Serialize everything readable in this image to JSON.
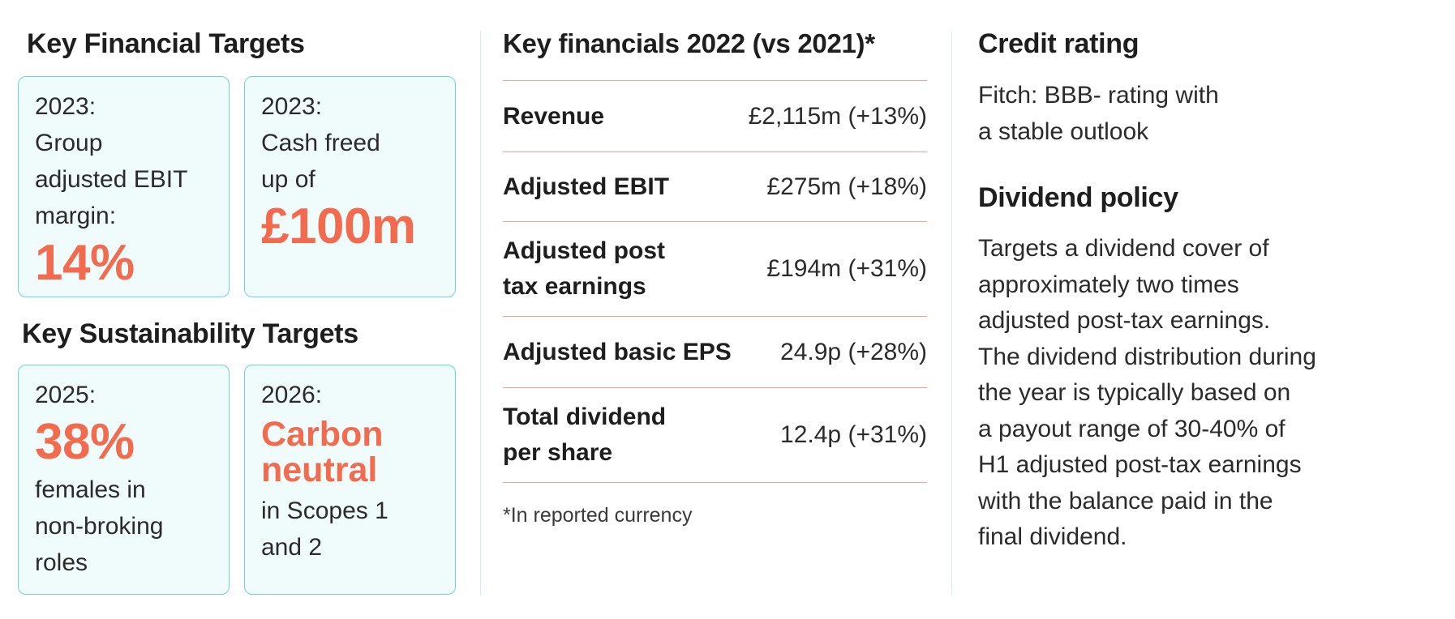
{
  "financial_targets": {
    "title": "Key Financial Targets",
    "ebit_card": {
      "lines": [
        "2023:",
        "Group",
        "adjusted EBIT",
        "margin:"
      ],
      "value": "14%"
    },
    "cash_card": {
      "lines": [
        "2023:",
        "Cash freed",
        "up of"
      ],
      "value": "£100m"
    }
  },
  "sustainability_targets": {
    "title": "Key Sustainability Targets",
    "females_card": {
      "year": "2025:",
      "value": "38%",
      "lines": [
        "females in",
        "non-broking",
        "roles"
      ]
    },
    "carbon_card": {
      "year": "2026:",
      "highlight": [
        "Carbon",
        "neutral"
      ],
      "lines": [
        "in Scopes 1",
        "and 2"
      ]
    }
  },
  "key_financials": {
    "title": "Key financials 2022 (vs 2021)*",
    "rows": [
      {
        "label": [
          "Revenue"
        ],
        "value": "£2,115m (+13%)"
      },
      {
        "label": [
          "Adjusted EBIT"
        ],
        "value": "£275m (+18%)"
      },
      {
        "label": [
          "Adjusted post",
          "tax earnings"
        ],
        "value": "£194m (+31%)"
      },
      {
        "label": [
          "Adjusted basic EPS"
        ],
        "value": "24.9p (+28%)"
      },
      {
        "label": [
          "Total dividend",
          "per share"
        ],
        "value": "12.4p (+31%)"
      }
    ],
    "footnote": "*In reported currency"
  },
  "credit_rating": {
    "title": "Credit rating",
    "lines": [
      "Fitch: BBB- rating with",
      "a stable outlook"
    ]
  },
  "dividend_policy": {
    "title": "Dividend policy",
    "lines": [
      "Targets a dividend cover of",
      "approximately two times",
      "adjusted post-tax earnings.",
      "The dividend distribution during",
      "the year is typically based on",
      "a payout range of 30-40% of",
      "H1 adjusted post-tax earnings",
      "with the balance paid in the",
      "final dividend."
    ]
  },
  "colors": {
    "accent": "#f26b4f",
    "card_border": "#6fd6ce",
    "card_background": "#f0fcfb",
    "table_rule": "#f2a394"
  }
}
